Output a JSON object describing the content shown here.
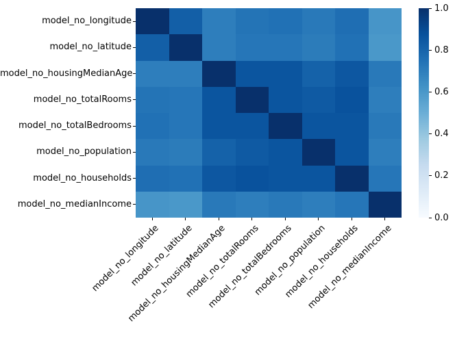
{
  "figure": {
    "background_color": "#ffffff",
    "text_color": "#000000"
  },
  "chart_data": {
    "type": "heatmap",
    "title": "",
    "xlabel": "",
    "ylabel": "",
    "categories": [
      "model_no_longitude",
      "model_no_latitude",
      "model_no_housingMedianAge",
      "model_no_totalRooms",
      "model_no_totalBedrooms",
      "model_no_population",
      "model_no_households",
      "model_no_medianIncome"
    ],
    "matrix": [
      [
        1.0,
        0.82,
        0.7,
        0.74,
        0.75,
        0.72,
        0.76,
        0.61
      ],
      [
        0.82,
        1.0,
        0.7,
        0.73,
        0.73,
        0.71,
        0.75,
        0.6
      ],
      [
        0.7,
        0.7,
        1.0,
        0.86,
        0.86,
        0.81,
        0.85,
        0.72
      ],
      [
        0.74,
        0.73,
        0.86,
        1.0,
        0.86,
        0.84,
        0.87,
        0.7
      ],
      [
        0.75,
        0.73,
        0.86,
        0.86,
        1.0,
        0.86,
        0.86,
        0.72
      ],
      [
        0.72,
        0.71,
        0.81,
        0.84,
        0.86,
        1.0,
        0.86,
        0.7
      ],
      [
        0.76,
        0.75,
        0.85,
        0.87,
        0.86,
        0.86,
        1.0,
        0.73
      ],
      [
        0.61,
        0.6,
        0.72,
        0.7,
        0.72,
        0.7,
        0.73,
        1.0
      ]
    ],
    "vmin": 0.0,
    "vmax": 1.0,
    "x_tick_rotation": 45,
    "grid": false,
    "colormap": {
      "name": "Blues",
      "anchors": [
        {
          "pos": 0.0,
          "color": "#f7fbff"
        },
        {
          "pos": 0.125,
          "color": "#deebf7"
        },
        {
          "pos": 0.25,
          "color": "#c6dbef"
        },
        {
          "pos": 0.375,
          "color": "#9ecae1"
        },
        {
          "pos": 0.5,
          "color": "#6baed6"
        },
        {
          "pos": 0.625,
          "color": "#4292c6"
        },
        {
          "pos": 0.75,
          "color": "#2171b5"
        },
        {
          "pos": 0.875,
          "color": "#08519c"
        },
        {
          "pos": 1.0,
          "color": "#08306b"
        }
      ]
    },
    "colorbar": {
      "position": "right",
      "tick_labels": [
        "1.0",
        "0.8",
        "0.6",
        "0.4",
        "0.2",
        "0.0"
      ],
      "tick_values": [
        1.0,
        0.8,
        0.6,
        0.4,
        0.2,
        0.0
      ]
    }
  }
}
